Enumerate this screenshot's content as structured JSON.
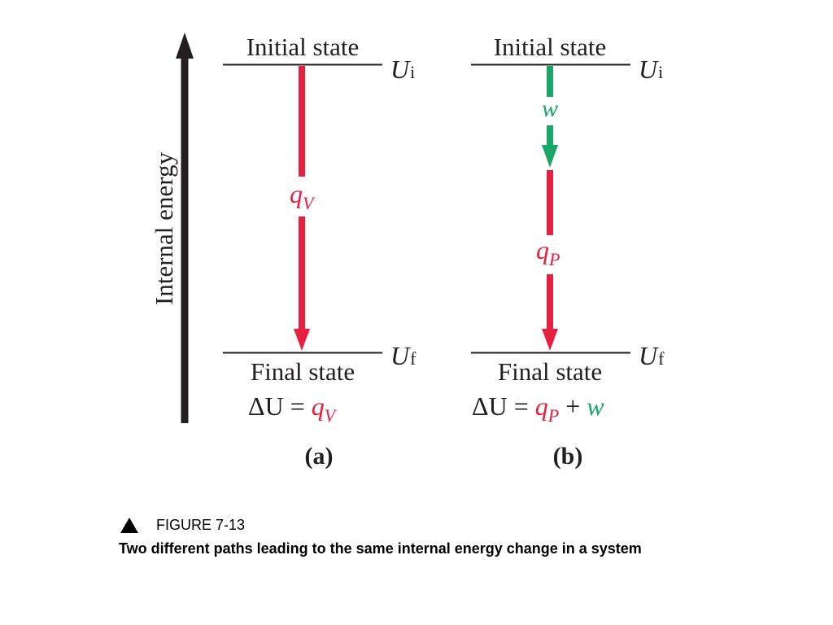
{
  "colors": {
    "heat": "#e8203f",
    "work": "#1aa667",
    "ink": "#231f20"
  },
  "axis": {
    "label": "Internal energy"
  },
  "panel_a": {
    "initial_state": "Initial state",
    "final_state": "Final state",
    "initial_symbol": "U",
    "initial_subscript": "i",
    "final_symbol": "U",
    "final_subscript": "f",
    "heat_symbol": "q",
    "heat_subscript": "V",
    "equation_lhs": "ΔU = ",
    "equation_q": "q",
    "equation_q_subscript": "V",
    "label": "(a)"
  },
  "panel_b": {
    "initial_state": "Initial state",
    "final_state": "Final state",
    "initial_symbol": "U",
    "initial_subscript": "i",
    "final_symbol": "U",
    "final_subscript": "f",
    "work_symbol": "w",
    "heat_symbol": "q",
    "heat_subscript": "P",
    "equation_lhs": "ΔU = ",
    "equation_q": "q",
    "equation_q_subscript": "P",
    "equation_plus": " + ",
    "equation_w": "w",
    "label": "(b)"
  },
  "caption": {
    "figure_label": "FIGURE 7-13",
    "text": "Two different paths leading to the same internal energy change in a system"
  }
}
